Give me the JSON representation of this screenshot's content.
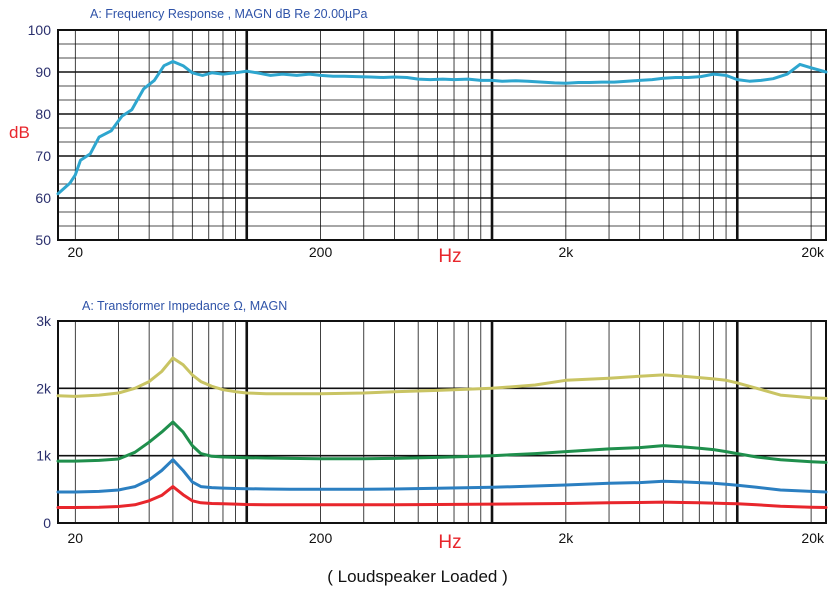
{
  "caption": "( Loudspeaker Loaded )",
  "chart_data": [
    {
      "type": "line",
      "title": "A:   Frequency Response , MAGN dB  Re 20.00µPa",
      "ylabel": "dB",
      "xlabel": "Hz",
      "x_scale": "log",
      "xlim": [
        17,
        23000
      ],
      "ylim": [
        50,
        100
      ],
      "x_tick_values": [
        20,
        200,
        2000,
        20000
      ],
      "x_tick_labels": [
        "20",
        "200",
        "2k",
        "20k"
      ],
      "y_tick_values": [
        50,
        60,
        70,
        80,
        90,
        100
      ],
      "y_tick_labels": [
        "50",
        "60",
        "70",
        "80",
        "90",
        "100"
      ],
      "grid": true,
      "colors": {
        "title": "#2f53a8",
        "axis_label": "#e8262c",
        "line": "#2ea6cf",
        "grid": "#111111"
      },
      "series": [
        {
          "color": "#2ea6cf",
          "x": [
            17,
            19,
            20,
            21,
            23,
            25,
            28,
            31,
            34,
            38,
            42,
            46,
            50,
            55,
            60,
            66,
            72,
            80,
            90,
            100,
            110,
            125,
            140,
            160,
            180,
            200,
            225,
            250,
            280,
            320,
            360,
            400,
            450,
            500,
            560,
            630,
            700,
            800,
            900,
            1000,
            1100,
            1250,
            1400,
            1600,
            1800,
            2000,
            2250,
            2500,
            2800,
            3150,
            3550,
            4000,
            4500,
            5000,
            5600,
            6300,
            7100,
            8000,
            9000,
            10000,
            11200,
            12500,
            14000,
            16000,
            18000,
            20000,
            23000
          ],
          "y": [
            61,
            63.5,
            65.5,
            69,
            70.5,
            74.5,
            76,
            79.5,
            81,
            86,
            88,
            91.5,
            92.5,
            91.5,
            89.8,
            89.2,
            89.8,
            89.5,
            89.8,
            90.2,
            89.8,
            89.2,
            89.5,
            89.2,
            89.5,
            89.2,
            89.0,
            89.0,
            88.9,
            88.8,
            88.7,
            88.8,
            88.7,
            88.3,
            88.2,
            88.3,
            88.2,
            88.3,
            88.0,
            88.0,
            87.8,
            87.9,
            87.8,
            87.6,
            87.4,
            87.3,
            87.5,
            87.5,
            87.6,
            87.6,
            87.8,
            88.0,
            88.2,
            88.5,
            88.7,
            88.7,
            88.9,
            89.5,
            89.2,
            88.2,
            87.8,
            88.0,
            88.4,
            89.5,
            91.8,
            91.0,
            90.0
          ]
        }
      ]
    },
    {
      "type": "line",
      "title": "A:     Transformer Impedance Ω,   MAGN",
      "xlabel": "Hz",
      "x_scale": "log",
      "xlim": [
        17,
        23000
      ],
      "ylim": [
        0,
        3000
      ],
      "x_tick_values": [
        20,
        200,
        2000,
        20000
      ],
      "x_tick_labels": [
        "20",
        "200",
        "2k",
        "20k"
      ],
      "y_tick_values": [
        0,
        1000,
        2000,
        3000
      ],
      "y_tick_labels": [
        "0",
        "1k",
        "2k",
        "3k"
      ],
      "grid": true,
      "colors": {
        "title": "#2f53a8",
        "axis_label": "#e8262c",
        "grid": "#111111"
      },
      "series": [
        {
          "color": "#c9c463",
          "x": [
            17,
            20,
            25,
            30,
            35,
            40,
            45,
            50,
            55,
            60,
            65,
            72,
            80,
            90,
            100,
            120,
            150,
            200,
            300,
            400,
            600,
            1000,
            1500,
            2000,
            3000,
            4000,
            5000,
            6000,
            7000,
            8000,
            9000,
            10000,
            12000,
            15000,
            20000,
            23000
          ],
          "y": [
            1890,
            1880,
            1900,
            1930,
            2000,
            2100,
            2250,
            2450,
            2350,
            2200,
            2100,
            2030,
            1980,
            1950,
            1930,
            1920,
            1920,
            1920,
            1930,
            1950,
            1970,
            2000,
            2050,
            2120,
            2150,
            2180,
            2200,
            2180,
            2160,
            2140,
            2120,
            2080,
            2000,
            1900,
            1860,
            1850
          ]
        },
        {
          "color": "#1f8f4c",
          "x": [
            17,
            20,
            25,
            30,
            35,
            40,
            45,
            50,
            55,
            60,
            65,
            72,
            80,
            90,
            100,
            120,
            150,
            200,
            300,
            400,
            600,
            1000,
            1500,
            2000,
            3000,
            4000,
            5000,
            6000,
            7000,
            8000,
            9000,
            10000,
            12000,
            15000,
            20000,
            23000
          ],
          "y": [
            920,
            920,
            930,
            950,
            1050,
            1200,
            1350,
            1500,
            1350,
            1150,
            1030,
            990,
            980,
            975,
            970,
            965,
            960,
            955,
            955,
            960,
            975,
            1000,
            1030,
            1060,
            1100,
            1120,
            1150,
            1130,
            1110,
            1090,
            1060,
            1030,
            980,
            940,
            910,
            900
          ]
        },
        {
          "color": "#2b7fc1",
          "x": [
            17,
            20,
            25,
            30,
            35,
            40,
            45,
            50,
            55,
            60,
            65,
            72,
            80,
            90,
            100,
            120,
            150,
            200,
            300,
            400,
            600,
            1000,
            1500,
            2000,
            3000,
            4000,
            5000,
            6000,
            7000,
            8000,
            9000,
            10000,
            12000,
            15000,
            20000,
            23000
          ],
          "y": [
            460,
            460,
            470,
            490,
            540,
            640,
            780,
            940,
            780,
            610,
            540,
            525,
            518,
            512,
            510,
            505,
            500,
            500,
            500,
            505,
            515,
            530,
            550,
            565,
            590,
            600,
            620,
            610,
            600,
            590,
            575,
            560,
            530,
            490,
            470,
            460
          ]
        },
        {
          "color": "#e8262c",
          "x": [
            17,
            20,
            25,
            30,
            35,
            40,
            45,
            50,
            55,
            60,
            65,
            72,
            80,
            90,
            100,
            120,
            150,
            200,
            300,
            400,
            600,
            1000,
            1500,
            2000,
            3000,
            4000,
            5000,
            6000,
            7000,
            8000,
            9000,
            10000,
            12000,
            15000,
            20000,
            23000
          ],
          "y": [
            230,
            230,
            235,
            245,
            270,
            330,
            410,
            540,
            420,
            330,
            300,
            290,
            285,
            280,
            275,
            272,
            270,
            270,
            270,
            272,
            275,
            280,
            285,
            290,
            300,
            305,
            310,
            305,
            300,
            295,
            290,
            285,
            270,
            250,
            235,
            230
          ]
        }
      ]
    }
  ]
}
